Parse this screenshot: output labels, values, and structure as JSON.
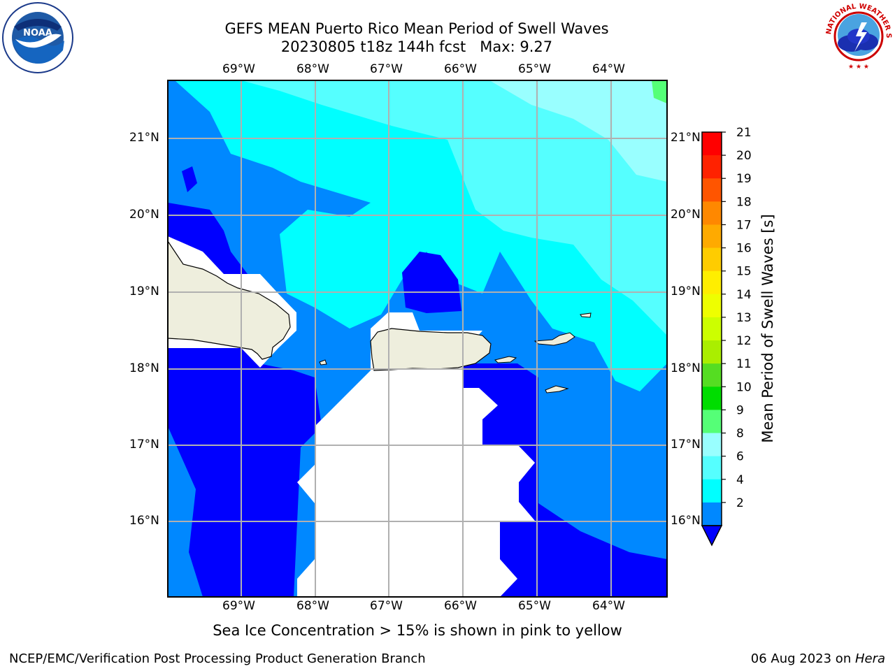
{
  "header": {
    "title_line1": "GEFS MEAN Puerto Rico Mean Period of Swell Waves",
    "title_line2": "20230805 t18z 144h fcst   Max: 9.27"
  },
  "logos": {
    "left": {
      "name": "noaa-logo",
      "text": "NOAA"
    },
    "right": {
      "name": "nws-logo",
      "text": "NATIONAL WEATHER SERVICE"
    }
  },
  "map": {
    "lon_ticks": [
      "69°W",
      "68°W",
      "67°W",
      "66°W",
      "65°W",
      "64°W"
    ],
    "lat_ticks": [
      "21°N",
      "20°N",
      "19°N",
      "18°N",
      "17°N",
      "16°N"
    ],
    "grid": true
  },
  "colorbar": {
    "label": "Mean Period of Swell Waves [s]",
    "ticks": [
      "21",
      "20",
      "19",
      "18",
      "17",
      "16",
      "15",
      "14",
      "13",
      "12",
      "11",
      "10",
      "9",
      "8",
      "6",
      "4",
      "2"
    ],
    "colors": [
      "#ff0000",
      "#ff2200",
      "#ff5500",
      "#ff8800",
      "#ffaa00",
      "#ffcc00",
      "#ffee00",
      "#eeff00",
      "#ccff00",
      "#aaee00",
      "#55dd22",
      "#00dd00",
      "#55ff77",
      "#99ffff",
      "#55ffff",
      "#00ffff",
      "#0088ff"
    ],
    "under_color": "#0000ff"
  },
  "caption": "Sea Ice Concentration > 15% is shown in pink to yellow",
  "footer": {
    "left": "NCEP/EMC/Verification Post Processing Product Generation Branch",
    "right_date": "06 Aug 2023 on ",
    "right_host": "Hera"
  }
}
